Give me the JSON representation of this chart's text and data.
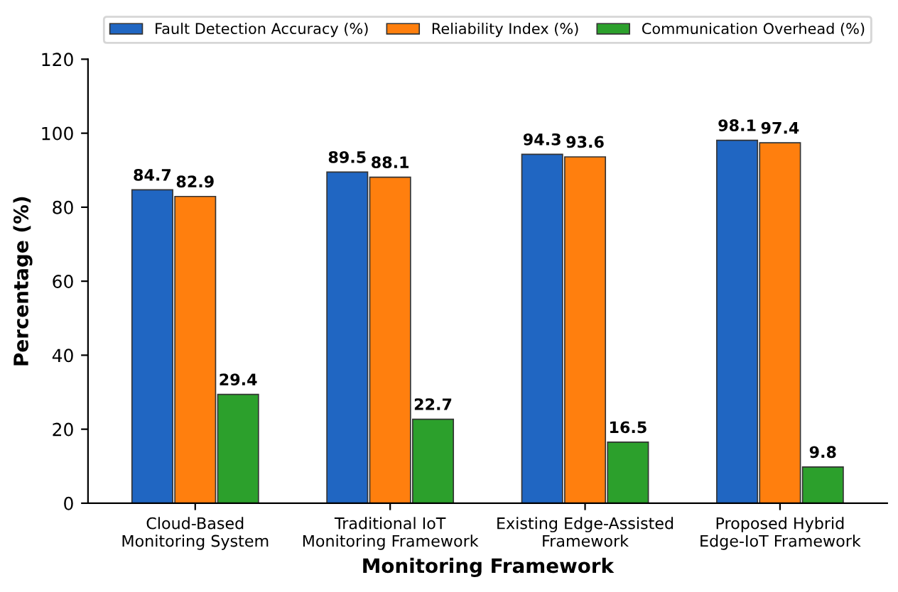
{
  "chart_data": {
    "type": "bar",
    "xlabel": "Monitoring Framework",
    "ylabel": "Percentage (%)",
    "categories": [
      "Cloud-Based\nMonitoring System",
      "Traditional IoT\nMonitoring Framework",
      "Existing Edge-Assisted\nFramework",
      "Proposed Hybrid\nEdge-IoT Framework"
    ],
    "series": [
      {
        "name": "Fault Detection Accuracy (%)",
        "color": "#2066c2",
        "values": [
          84.7,
          89.5,
          94.3,
          98.1
        ]
      },
      {
        "name": "Reliability Index (%)",
        "color": "#ff7f0e",
        "values": [
          82.9,
          88.1,
          93.6,
          97.4
        ]
      },
      {
        "name": "Communication Overhead (%)",
        "color": "#2ca02c",
        "values": [
          29.4,
          22.7,
          16.5,
          9.8
        ]
      }
    ],
    "ylim": [
      0,
      120
    ],
    "yticks": [
      0,
      20,
      40,
      60,
      80,
      100,
      120
    ],
    "data_labels": true,
    "legend": "top",
    "grid": false
  }
}
